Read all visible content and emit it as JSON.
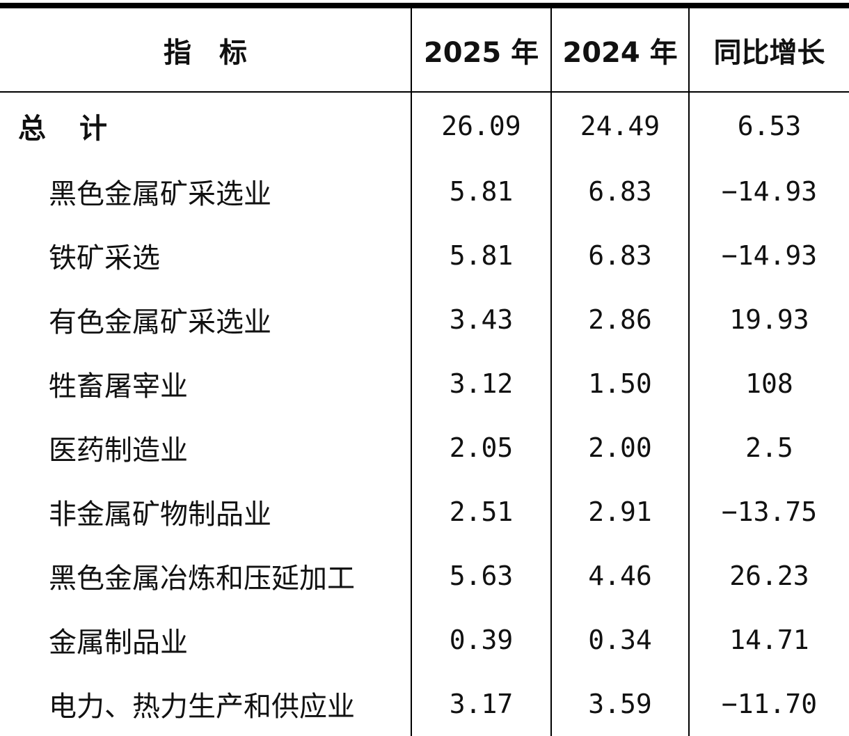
{
  "table": {
    "headers": [
      "指　标",
      "2025 年",
      "2024 年",
      "同比增长"
    ],
    "rows": [
      {
        "label": "总　计",
        "y2025": "26.09",
        "y2024": "24.49",
        "growth": "6.53"
      },
      {
        "label": "黑色金属矿采选业",
        "y2025": "5.81",
        "y2024": "6.83",
        "growth": "−14.93"
      },
      {
        "label": "铁矿采选",
        "y2025": "5.81",
        "y2024": "6.83",
        "growth": "−14.93"
      },
      {
        "label": "有色金属矿采选业",
        "y2025": "3.43",
        "y2024": "2.86",
        "growth": "19.93"
      },
      {
        "label": "牲畜屠宰业",
        "y2025": "3.12",
        "y2024": "1.50",
        "growth": "108"
      },
      {
        "label": "医药制造业",
        "y2025": "2.05",
        "y2024": "2.00",
        "growth": "2.5"
      },
      {
        "label": "非金属矿物制品业",
        "y2025": "2.51",
        "y2024": "2.91",
        "growth": "−13.75"
      },
      {
        "label": "黑色金属冶炼和压延加工",
        "y2025": "5.63",
        "y2024": "4.46",
        "growth": "26.23"
      },
      {
        "label": "金属制品业",
        "y2025": "0.39",
        "y2024": "0.34",
        "growth": "14.71"
      },
      {
        "label": "电力、热力生产和供应业",
        "y2025": "3.17",
        "y2024": "3.59",
        "growth": "−11.70"
      }
    ]
  }
}
